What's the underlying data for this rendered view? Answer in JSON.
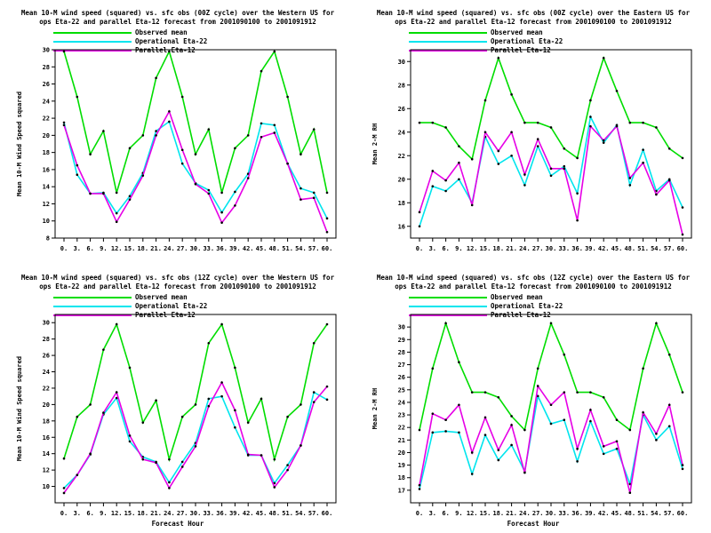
{
  "series_colors": {
    "observed": "#00dd00",
    "operational": "#00e5ee",
    "parallel": "#e600e6"
  },
  "chart_data": [
    {
      "type": "line",
      "title": "Mean 10-M wind speed (squared) vs. sfc obs (00Z cycle) over the Western US for\nops Eta-22 and parallel Eta-12 forecast from 2001090100 to 2001091912",
      "xlabel": "",
      "ylabel": "Mean 10-M Wind Speed squared",
      "legend": [
        "Observed mean",
        "Operational Eta-22",
        "Parallel Eta-12"
      ],
      "x": [
        0,
        3,
        6,
        9,
        12,
        15,
        18,
        21,
        24,
        27,
        30,
        33,
        36,
        39,
        42,
        45,
        48,
        51,
        54,
        57,
        60
      ],
      "x_ticks": [
        "0.",
        "3.",
        "6.",
        "9.",
        "12.",
        "15.",
        "18.",
        "21.",
        "24.",
        "27.",
        "30.",
        "33.",
        "36.",
        "39.",
        "42.",
        "45.",
        "48.",
        "51.",
        "54.",
        "57.",
        "60."
      ],
      "ylim": [
        8,
        30
      ],
      "y_ticks": [
        "8",
        "10",
        "12",
        "14",
        "16",
        "18",
        "20",
        "22",
        "24",
        "26",
        "28",
        "30"
      ],
      "y_ticks_val": [
        8,
        10,
        12,
        14,
        16,
        18,
        20,
        22,
        24,
        26,
        28,
        30
      ],
      "series": [
        {
          "name": "Observed mean",
          "values": [
            29.8,
            24.5,
            17.8,
            20.5,
            13.3,
            18.5,
            20.0,
            26.7,
            29.8,
            24.5,
            17.8,
            20.7,
            13.3,
            18.5,
            20.0,
            27.5,
            29.8,
            24.5,
            17.8,
            20.7,
            13.3
          ]
        },
        {
          "name": "Operational Eta-22",
          "values": [
            21.5,
            15.4,
            13.2,
            13.3,
            10.9,
            12.9,
            15.6,
            20.5,
            21.6,
            16.7,
            14.4,
            13.6,
            11.0,
            13.4,
            15.5,
            21.4,
            21.2,
            16.7,
            13.8,
            13.3,
            10.3
          ]
        },
        {
          "name": "Parallel Eta-12",
          "values": [
            21.2,
            16.5,
            13.2,
            13.2,
            9.9,
            12.5,
            15.3,
            20.0,
            22.8,
            18.3,
            14.3,
            13.2,
            9.8,
            11.8,
            15.0,
            19.8,
            20.3,
            16.7,
            12.5,
            12.7,
            8.7
          ]
        }
      ]
    },
    {
      "type": "line",
      "title": "Mean 10-M wind speed (squared) vs. sfc obs (00Z cycle) over the Eastern US for\nops Eta-22 and parallel Eta-12 forecast from 2001090100 to 2001091912",
      "xlabel": "",
      "ylabel": "Mean 2-M RH",
      "legend": [
        "Observed mean",
        "Operational Eta-22",
        "Parallel Eta-12"
      ],
      "x": [
        0,
        3,
        6,
        9,
        12,
        15,
        18,
        21,
        24,
        27,
        30,
        33,
        36,
        39,
        42,
        45,
        48,
        51,
        54,
        57,
        60
      ],
      "x_ticks": [
        "0.",
        "3.",
        "6.",
        "9.",
        "12.",
        "15.",
        "18.",
        "21.",
        "24.",
        "27.",
        "30.",
        "33.",
        "36.",
        "39.",
        "42.",
        "45.",
        "48.",
        "51.",
        "54.",
        "57.",
        "60."
      ],
      "ylim": [
        15,
        31
      ],
      "y_ticks": [
        "16",
        "18",
        "20",
        "22",
        "24",
        "26",
        "28",
        "30"
      ],
      "y_ticks_val": [
        16,
        18,
        20,
        22,
        24,
        26,
        28,
        30
      ],
      "series": [
        {
          "name": "Observed mean",
          "values": [
            24.8,
            24.8,
            24.4,
            22.8,
            21.7,
            26.7,
            30.3,
            27.2,
            24.8,
            24.8,
            24.4,
            22.6,
            21.8,
            26.7,
            30.3,
            27.5,
            24.8,
            24.8,
            24.4,
            22.6,
            21.8
          ]
        },
        {
          "name": "Operational Eta-22",
          "values": [
            16.0,
            19.4,
            19.0,
            20.0,
            18.0,
            23.6,
            21.3,
            22.0,
            19.5,
            22.8,
            20.3,
            21.1,
            18.8,
            25.3,
            23.1,
            24.6,
            19.5,
            22.5,
            19.0,
            20.0,
            17.6
          ]
        },
        {
          "name": "Parallel Eta-12",
          "values": [
            17.2,
            20.7,
            19.9,
            21.4,
            17.8,
            24.0,
            22.4,
            24.0,
            20.4,
            23.4,
            20.9,
            20.9,
            16.5,
            24.5,
            23.3,
            24.5,
            20.1,
            21.4,
            18.7,
            19.9,
            15.3
          ]
        }
      ]
    },
    {
      "type": "line",
      "title": "Mean 10-M wind speed (squared) vs. sfc obs (12Z cycle) over the Western US for\nops Eta-22 and parallel Eta-12 forecast from 2001090100 to 2001091912",
      "xlabel": "Forecast Hour",
      "ylabel": "Mean 10-M Wind Speed squared",
      "legend": [
        "Observed mean",
        "Operational Eta-22",
        "Parallel Eta-12"
      ],
      "x": [
        0,
        3,
        6,
        9,
        12,
        15,
        18,
        21,
        24,
        27,
        30,
        33,
        36,
        39,
        42,
        45,
        48,
        51,
        54,
        57,
        60
      ],
      "x_ticks": [
        "0.",
        "3.",
        "6.",
        "9.",
        "12.",
        "15.",
        "18.",
        "21.",
        "24.",
        "27.",
        "30.",
        "33.",
        "36.",
        "39.",
        "42.",
        "45.",
        "48.",
        "51.",
        "54.",
        "57.",
        "60."
      ],
      "ylim": [
        8,
        31
      ],
      "y_ticks": [
        "10",
        "12",
        "14",
        "16",
        "18",
        "20",
        "22",
        "24",
        "26",
        "28",
        "30"
      ],
      "y_ticks_val": [
        10,
        12,
        14,
        16,
        18,
        20,
        22,
        24,
        26,
        28,
        30
      ],
      "series": [
        {
          "name": "Observed mean",
          "values": [
            13.4,
            18.5,
            20.0,
            26.7,
            29.8,
            24.5,
            17.8,
            20.5,
            13.3,
            18.5,
            20.0,
            27.5,
            29.8,
            24.5,
            17.8,
            20.7,
            13.3,
            18.5,
            20.0,
            27.5,
            29.8
          ]
        },
        {
          "name": "Operational Eta-22",
          "values": [
            9.8,
            11.4,
            13.9,
            18.8,
            20.8,
            15.5,
            13.6,
            13.0,
            10.5,
            13.0,
            15.3,
            20.7,
            21.0,
            17.2,
            13.8,
            13.8,
            10.4,
            12.6,
            15.0,
            21.5,
            20.6
          ]
        },
        {
          "name": "Parallel Eta-12",
          "values": [
            9.2,
            11.4,
            14.0,
            19.0,
            21.5,
            16.2,
            13.3,
            12.9,
            9.8,
            12.4,
            14.9,
            19.8,
            22.7,
            19.3,
            13.9,
            13.8,
            9.9,
            12.0,
            15.0,
            20.3,
            22.2
          ]
        }
      ]
    },
    {
      "type": "line",
      "title": "Mean 10-M wind speed (squared) vs. sfc obs (12Z cycle) over the Eastern US for\nops Eta-22 and parallel Eta-12 forecast from 2001090100 to 2001091912",
      "xlabel": "Forecast Hour",
      "ylabel": "Mean 2-M RH",
      "legend": [
        "Observed mean",
        "Operational Eta-22",
        "Parallel Eta-12"
      ],
      "x": [
        0,
        3,
        6,
        9,
        12,
        15,
        18,
        21,
        24,
        27,
        30,
        33,
        36,
        39,
        42,
        45,
        48,
        51,
        54,
        57,
        60
      ],
      "x_ticks": [
        "0.",
        "3.",
        "6.",
        "9.",
        "12.",
        "15.",
        "18.",
        "21.",
        "24.",
        "27.",
        "30.",
        "33.",
        "36.",
        "39.",
        "42.",
        "45.",
        "48.",
        "51.",
        "54.",
        "57.",
        "60."
      ],
      "ylim": [
        16,
        31
      ],
      "y_ticks": [
        "17",
        "18",
        "19",
        "20",
        "21",
        "22",
        "23",
        "24",
        "25",
        "26",
        "27",
        "28",
        "29",
        "30"
      ],
      "y_ticks_val": [
        17,
        18,
        19,
        20,
        21,
        22,
        23,
        24,
        25,
        26,
        27,
        28,
        29,
        30
      ],
      "series": [
        {
          "name": "Observed mean",
          "values": [
            21.8,
            26.7,
            30.3,
            27.2,
            24.8,
            24.8,
            24.4,
            22.9,
            21.8,
            26.7,
            30.3,
            27.8,
            24.8,
            24.8,
            24.4,
            22.6,
            21.8,
            26.7,
            30.3,
            27.8,
            24.8
          ]
        },
        {
          "name": "Operational Eta-22",
          "values": [
            17.1,
            21.6,
            21.7,
            21.6,
            18.3,
            21.4,
            19.4,
            20.6,
            18.5,
            24.5,
            22.3,
            22.6,
            19.3,
            22.5,
            19.9,
            20.3,
            17.5,
            23.0,
            21.0,
            22.1,
            18.7
          ]
        },
        {
          "name": "Parallel Eta-12",
          "values": [
            17.4,
            23.1,
            22.6,
            23.8,
            20.0,
            22.8,
            20.2,
            22.2,
            18.4,
            25.3,
            23.8,
            24.8,
            20.3,
            23.4,
            20.5,
            20.9,
            16.8,
            23.2,
            21.5,
            23.8,
            19.0
          ]
        }
      ]
    }
  ]
}
